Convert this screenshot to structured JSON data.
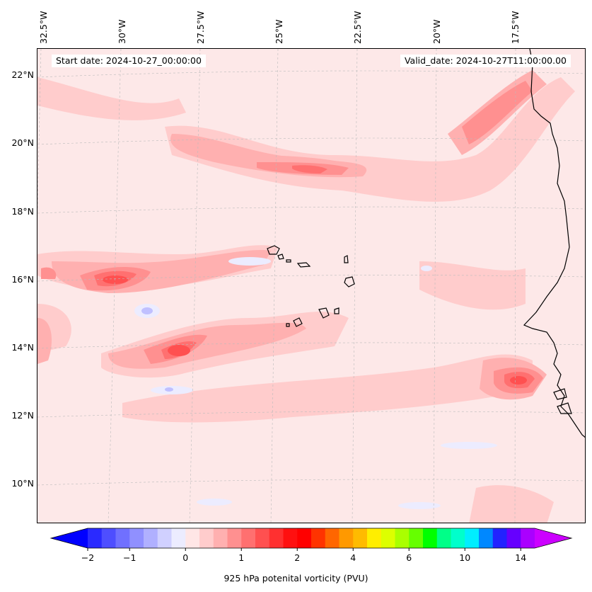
{
  "header": {
    "start_date": "Start date: 2024-10-27_00:00:00",
    "valid_date": "Valid_date: 2024-10-27T11:00:00.00"
  },
  "latitude_labels": [
    "22°N",
    "20°N",
    "18°N",
    "16°N",
    "14°N",
    "12°N",
    "10°N"
  ],
  "longitude_labels": [
    "32.5°W",
    "30°W",
    "27.5°W",
    "25°W",
    "22.5°W",
    "20°W",
    "17.5°W"
  ],
  "colorbar": {
    "label": "925 hPa potenital vorticity (PVU)",
    "tick_labels": [
      "−2",
      "−1",
      "0",
      "1",
      "2",
      "4",
      "6",
      "10",
      "14"
    ],
    "colors": [
      "#0000ff",
      "#2a2aff",
      "#4e4eff",
      "#7070ff",
      "#9090ff",
      "#b0b0ff",
      "#d0d0ff",
      "#ececff",
      "#ffe6e6",
      "#ffcccc",
      "#ffb0b0",
      "#ff9090",
      "#ff7070",
      "#ff5050",
      "#ff3030",
      "#ff1010",
      "#ff0000",
      "#ff3300",
      "#ff6600",
      "#ff9900",
      "#ffbb00",
      "#ffee00",
      "#ddff00",
      "#aaff00",
      "#66ff00",
      "#00ff00",
      "#00ff88",
      "#00ffcc",
      "#00eeff",
      "#0088ff",
      "#2222ff",
      "#6600ff",
      "#aa00ff",
      "#cc00ff"
    ]
  },
  "map_colors": {
    "background": "#fde8e8",
    "light_pink": "#ffcccc",
    "pink": "#ffb0b0",
    "mid_red": "#ff9090",
    "red": "#ff7070",
    "deep_red": "#ff5050",
    "pale_blue": "#ececff",
    "blue": "#c0c0ff",
    "coast": "#000000"
  }
}
